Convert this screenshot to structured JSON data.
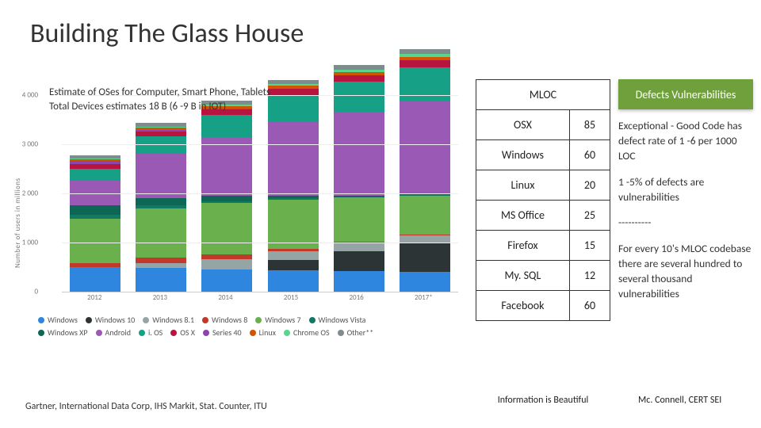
{
  "title": "Building The Glass House",
  "chart": {
    "caption_l1": "Estimate of OSes for Computer, Smart Phone, Tablets",
    "caption_l2": "Total Devices estimates 18 B (6 -9 B in IOT)",
    "y_axis_label": "Number of users in millions",
    "ymax": 4200,
    "yticks": [
      0,
      1000,
      2000,
      3000,
      4000
    ],
    "ytick_labels": [
      "0",
      "1 000",
      "2 000",
      "3 000",
      "4 000"
    ],
    "years": [
      "2012",
      "2013",
      "2014",
      "2015",
      "2016",
      "2017*"
    ],
    "series": [
      {
        "name": "Windows",
        "color": "#2e86de",
        "values": [
          500,
          480,
          460,
          440,
          420,
          400
        ]
      },
      {
        "name": "Windows 10",
        "color": "#2d3436",
        "values": [
          0,
          0,
          0,
          200,
          400,
          600
        ]
      },
      {
        "name": "Windows 8.1",
        "color": "#95a5a6",
        "values": [
          0,
          100,
          200,
          180,
          160,
          140
        ]
      },
      {
        "name": "Windows 8",
        "color": "#c0392b",
        "values": [
          80,
          120,
          100,
          60,
          40,
          20
        ]
      },
      {
        "name": "Windows 7",
        "color": "#6ab04c",
        "values": [
          900,
          1000,
          1050,
          1000,
          900,
          800
        ]
      },
      {
        "name": "Windows Vista",
        "color": "#117864",
        "values": [
          80,
          60,
          40,
          20,
          10,
          5
        ]
      },
      {
        "name": "Windows XP",
        "color": "#0e6655",
        "values": [
          200,
          150,
          100,
          60,
          30,
          15
        ]
      },
      {
        "name": "Android",
        "color": "#9b59b6",
        "values": [
          500,
          900,
          1200,
          1500,
          1700,
          1900
        ]
      },
      {
        "name": "i. OS",
        "color": "#16a085",
        "values": [
          250,
          350,
          450,
          550,
          620,
          700
        ]
      },
      {
        "name": "OS X",
        "color": "#b71540",
        "values": [
          90,
          100,
          110,
          120,
          130,
          140
        ]
      },
      {
        "name": "Series 40",
        "color": "#8e44ad",
        "values": [
          60,
          40,
          20,
          10,
          5,
          0
        ]
      },
      {
        "name": "Linux",
        "color": "#d35400",
        "values": [
          40,
          45,
          50,
          55,
          60,
          65
        ]
      },
      {
        "name": "Chrome OS",
        "color": "#58d68d",
        "values": [
          10,
          20,
          30,
          40,
          50,
          60
        ]
      },
      {
        "name": "Other**",
        "color": "#7f8c8d",
        "values": [
          70,
          75,
          80,
          85,
          90,
          95
        ]
      }
    ],
    "legend_rows": [
      [
        "Windows",
        "Windows 10",
        "Windows 8.1",
        "Windows 8",
        "Windows 7",
        "Windows Vista"
      ],
      [
        "Windows XP",
        "Android",
        "i. OS",
        "OS X",
        "Series 40",
        "Linux",
        "Chrome OS",
        "Other**"
      ]
    ],
    "source": "Gartner, International Data Corp, IHS Markit, Stat. Counter, ITU"
  },
  "table": {
    "header": "MLOC",
    "rows": [
      {
        "name": "OSX",
        "mloc": "85"
      },
      {
        "name": "Windows",
        "mloc": "60"
      },
      {
        "name": "Linux",
        "mloc": "20"
      },
      {
        "name": "MS Office",
        "mloc": "25"
      },
      {
        "name": "Firefox",
        "mloc": "15"
      },
      {
        "name": "My. SQL",
        "mloc": "12"
      },
      {
        "name": "Facebook",
        "mloc": "60"
      }
    ],
    "source": "Information is Beautiful"
  },
  "right": {
    "header": "Defects Vulnerabilities",
    "p1": "Exceptional - Good Code has defect rate of 1 -6 per 1000 LOC",
    "p2": "1 -5% of defects are vulnerabilities",
    "divider": "----------",
    "p3": "For every 10's MLOC codebase there are several hundred to several thousand vulnerabilities",
    "source": "Mc. Connell, CERT SEI"
  }
}
